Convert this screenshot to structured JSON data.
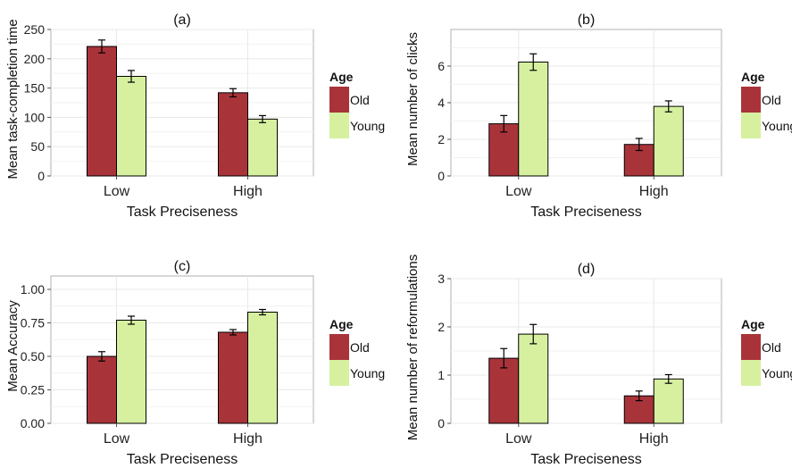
{
  "colors": {
    "old": "#A8343A",
    "young": "#D6F0A0",
    "grid": "#E8E8E8",
    "axis": "#555555",
    "panel_border": "#B0B0B0"
  },
  "legend": {
    "title": "Age",
    "items": [
      "Old",
      "Young"
    ]
  },
  "chart_data": [
    {
      "type": "bar",
      "title": "(a)",
      "xlabel": "Task Preciseness",
      "ylabel": "Mean task-completion time",
      "categories": [
        "Low",
        "High"
      ],
      "ylim": [
        0,
        250
      ],
      "yticks": [
        0,
        50,
        100,
        150,
        200,
        250
      ],
      "ytick_labels": [
        "0",
        "50",
        "100",
        "150",
        "200",
        "250"
      ],
      "series": [
        {
          "name": "Old",
          "values": [
            221,
            142
          ],
          "err": [
            11,
            7
          ]
        },
        {
          "name": "Young",
          "values": [
            170,
            97
          ],
          "err": [
            10,
            6
          ]
        }
      ]
    },
    {
      "type": "bar",
      "title": "(b)",
      "xlabel": "Task Preciseness",
      "ylabel": "Mean number of clicks",
      "categories": [
        "Low",
        "High"
      ],
      "ylim": [
        0,
        8
      ],
      "yticks": [
        0,
        2,
        4,
        6
      ],
      "ytick_labels": [
        "0",
        "2",
        "4",
        "6"
      ],
      "series": [
        {
          "name": "Old",
          "values": [
            2.85,
            1.72
          ],
          "err": [
            0.45,
            0.33
          ]
        },
        {
          "name": "Young",
          "values": [
            6.22,
            3.8
          ],
          "err": [
            0.45,
            0.3
          ]
        }
      ]
    },
    {
      "type": "bar",
      "title": "(c)",
      "xlabel": "Task Preciseness",
      "ylabel": "Mean Accuracy",
      "categories": [
        "Low",
        "High"
      ],
      "ylim": [
        0,
        1.1
      ],
      "yticks": [
        0,
        0.25,
        0.5,
        0.75,
        1.0
      ],
      "ytick_labels": [
        "0.00",
        "0.25",
        "0.50",
        "0.75",
        "1.00"
      ],
      "series": [
        {
          "name": "Old",
          "values": [
            0.5,
            0.68
          ],
          "err": [
            0.035,
            0.02
          ]
        },
        {
          "name": "Young",
          "values": [
            0.77,
            0.83
          ],
          "err": [
            0.03,
            0.02
          ]
        }
      ]
    },
    {
      "type": "bar",
      "title": "(d)",
      "xlabel": "Task Preciseness",
      "ylabel": "Mean number of reformulations",
      "categories": [
        "Low",
        "High"
      ],
      "ylim": [
        0,
        3
      ],
      "yticks": [
        0,
        1,
        2,
        3
      ],
      "ytick_labels": [
        "0",
        "1",
        "2",
        "3"
      ],
      "series": [
        {
          "name": "Old",
          "values": [
            1.35,
            0.57
          ],
          "err": [
            0.2,
            0.1
          ]
        },
        {
          "name": "Young",
          "values": [
            1.85,
            0.92
          ],
          "err": [
            0.2,
            0.09
          ]
        }
      ]
    }
  ]
}
